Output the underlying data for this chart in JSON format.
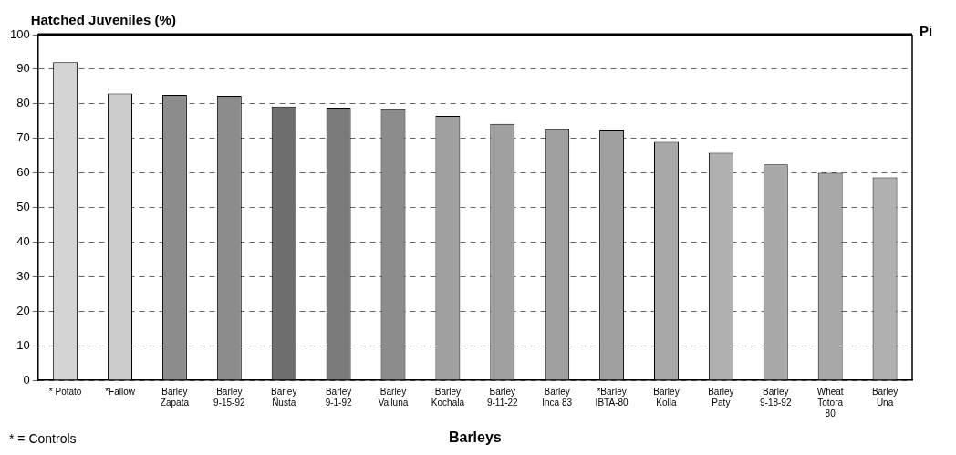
{
  "chart_data": {
    "type": "bar",
    "ylabel": "Hatched Juveniles (%)",
    "xlabel": "Barleys",
    "categories": [
      "* Potato",
      "*Fallow",
      "Barley Zapata",
      "Barley 9-15-92",
      "Barley Ñusta",
      "Barley 9-1-92",
      "Barley Valluna",
      "Barley Kochala",
      "Barley 9-11-22",
      "Barley Inca 83",
      "*Barley IBTA-80",
      "Barley Kolla",
      "Barley Paty",
      "Barley 9-18-92",
      "Wheat Totora 80",
      "Barley Una"
    ],
    "values": [
      92,
      83,
      82.6,
      82.3,
      79.2,
      78.9,
      78.4,
      76.5,
      74.2,
      72.6,
      72.3,
      69,
      65.8,
      62.5,
      60,
      58.7
    ],
    "colors": [
      "#d4d4d4",
      "#cccccc",
      "#8c8c8c",
      "#8c8c8c",
      "#6e6e6e",
      "#7a7a7a",
      "#8c8c8c",
      "#a0a0a0",
      "#a0a0a0",
      "#a0a0a0",
      "#a0a0a0",
      "#a8a8a8",
      "#b0b0b0",
      "#a8a8a8",
      "#a8a8a8",
      "#b0b0b0"
    ],
    "ylim": [
      0,
      100
    ],
    "yticks": [
      0,
      10,
      20,
      30,
      40,
      50,
      60,
      70,
      80,
      90,
      100
    ],
    "grid": "y",
    "legend": false,
    "annotations": [
      "* = Controls",
      "Pi"
    ]
  }
}
